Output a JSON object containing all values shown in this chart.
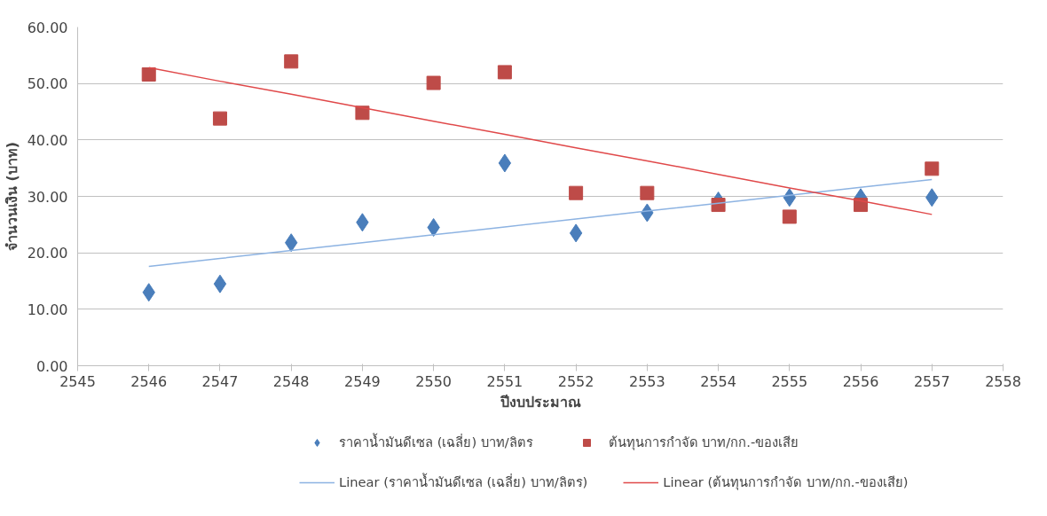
{
  "chart_data": {
    "type": "scatter",
    "xlabel": "ปีงบประมาณ",
    "ylabel": "จำนวนเงิน (บาท)",
    "xlim": [
      2545,
      2558
    ],
    "xticks": [
      2545,
      2546,
      2547,
      2548,
      2549,
      2550,
      2551,
      2552,
      2553,
      2554,
      2555,
      2556,
      2557,
      2558
    ],
    "ylim": [
      0,
      60
    ],
    "yticks": [
      {
        "value": 0,
        "label": "0.00"
      },
      {
        "value": 10,
        "label": "10.00"
      },
      {
        "value": 20,
        "label": "20.00"
      },
      {
        "value": 30,
        "label": "30.00"
      },
      {
        "value": 40,
        "label": "40.00"
      },
      {
        "value": 50,
        "label": "50.00"
      },
      {
        "value": 60,
        "label": "60.00"
      }
    ],
    "grid": "y",
    "legend": "bottom",
    "x": [
      2546,
      2547,
      2548,
      2549,
      2550,
      2551,
      2552,
      2553,
      2554,
      2555,
      2556,
      2557
    ],
    "series": [
      {
        "name": "ราคาน้ำมันดีเซล (เฉลี่ย) บาท/ลิตร",
        "color": "#4a7ebb",
        "marker": "diamond",
        "values": [
          13.0,
          14.5,
          21.8,
          25.4,
          24.5,
          35.9,
          23.5,
          27.1,
          29.2,
          29.8,
          29.8,
          29.8
        ]
      },
      {
        "name": "ต้นทุนการกำจัด บาท/กก.-ของเสีย",
        "color": "#be4b48",
        "marker": "square",
        "values": [
          51.6,
          43.8,
          53.9,
          44.8,
          50.1,
          52.0,
          30.6,
          30.6,
          28.5,
          26.4,
          28.5,
          34.9
        ]
      },
      {
        "name": "Linear (ราคาน้ำมันดีเซล (เฉลี่ย) บาท/ลิตร)",
        "type": "line",
        "color": "#8db3e2",
        "values": [
          17.6,
          19.0,
          20.4,
          21.8,
          23.2,
          24.6,
          26.0,
          27.4,
          28.8,
          30.2,
          31.6,
          33.0
        ]
      },
      {
        "name": "Linear (ต้นทุนการกำจัด บาท/กก.-ของเสีย)",
        "type": "line",
        "color": "#e0494a",
        "values": [
          52.8,
          50.4,
          48.1,
          45.7,
          43.3,
          41.0,
          38.6,
          36.3,
          33.9,
          31.5,
          29.2,
          26.8
        ]
      }
    ]
  }
}
